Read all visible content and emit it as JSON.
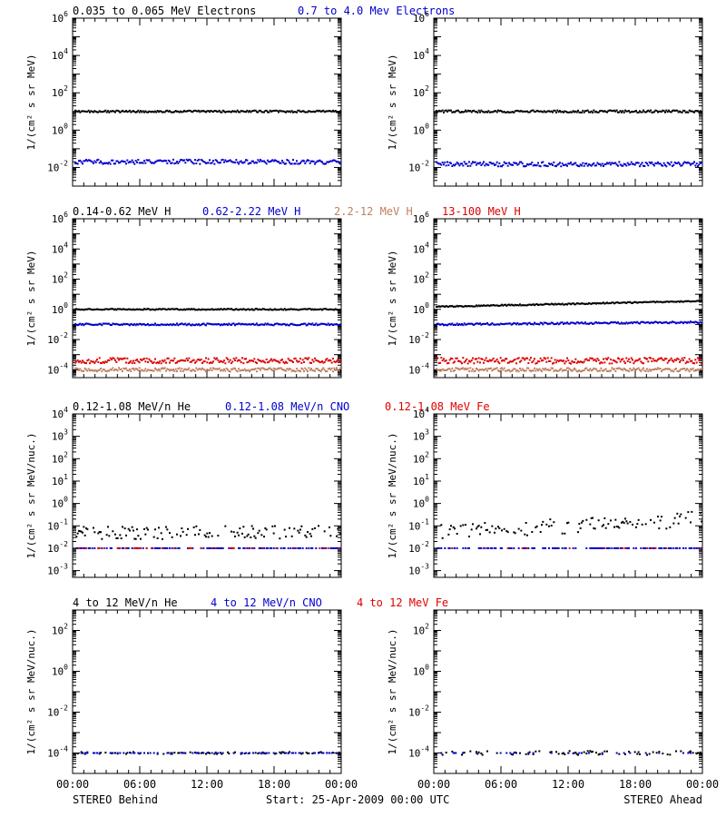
{
  "footer": {
    "left": "STEREO Behind",
    "center": "Start: 25-Apr-2009 00:00 UTC",
    "right": "STEREO Ahead"
  },
  "x_ticks": [
    "00:00",
    "06:00",
    "12:00",
    "18:00",
    "00:00"
  ],
  "colors": {
    "black": "#000000",
    "blue": "#0000cc",
    "tan": "#c08060",
    "red": "#dd0000"
  },
  "chart_data": [
    {
      "row": 0,
      "spacecraft": "STEREO Behind",
      "type": "scatter",
      "log_y": true,
      "ylim": [
        0.001,
        1000000
      ],
      "ylabel": "1/(cm² s sr MeV)",
      "yticks": [
        {
          "value": 0.01,
          "label": "10",
          "exp": "-2"
        },
        {
          "value": 1,
          "label": "10",
          "exp": "0"
        },
        {
          "value": 100,
          "label": "10",
          "exp": "2"
        },
        {
          "value": 10000,
          "label": "10",
          "exp": "4"
        },
        {
          "value": 1000000,
          "label": "10",
          "exp": "6"
        }
      ],
      "legend": [
        {
          "text": "0.035 to 0.065 MeV Electrons",
          "color": "#000000"
        },
        {
          "text": "0.7 to 4.0 Mev Electrons",
          "color": "#0000cc"
        }
      ],
      "series": [
        {
          "name": "0.035 to 0.065 MeV Electrons",
          "color": "#000000",
          "level": 10,
          "spread": 0.05
        },
        {
          "name": "0.7 to 4.0 Mev Electrons",
          "color": "#0000cc",
          "level": 0.02,
          "spread": 0.12
        }
      ]
    },
    {
      "row": 0,
      "spacecraft": "STEREO Ahead",
      "type": "scatter",
      "log_y": true,
      "ylim": [
        0.001,
        1000000
      ],
      "ylabel": "1/(cm² s sr MeV)",
      "yticks": [
        {
          "value": 0.01,
          "label": "10",
          "exp": "-2"
        },
        {
          "value": 1,
          "label": "10",
          "exp": "0"
        },
        {
          "value": 100,
          "label": "10",
          "exp": "2"
        },
        {
          "value": 10000,
          "label": "10",
          "exp": "4"
        },
        {
          "value": 1000000,
          "label": "10",
          "exp": "6"
        }
      ],
      "legend": [],
      "series": [
        {
          "name": "0.035 to 0.065 MeV Electrons",
          "color": "#000000",
          "level": 10,
          "spread": 0.06
        },
        {
          "name": "0.7 to 4.0 Mev Electrons",
          "color": "#0000cc",
          "level": 0.015,
          "spread": 0.12
        }
      ]
    },
    {
      "row": 1,
      "spacecraft": "STEREO Behind",
      "type": "scatter",
      "log_y": true,
      "ylim": [
        3e-05,
        1000000
      ],
      "ylabel": "1/(cm² s sr MeV)",
      "yticks": [
        {
          "value": 0.0001,
          "label": "10",
          "exp": "-4"
        },
        {
          "value": 0.01,
          "label": "10",
          "exp": "-2"
        },
        {
          "value": 1,
          "label": "10",
          "exp": "0"
        },
        {
          "value": 100,
          "label": "10",
          "exp": "2"
        },
        {
          "value": 10000,
          "label": "10",
          "exp": "4"
        },
        {
          "value": 1000000,
          "label": "10",
          "exp": "6"
        }
      ],
      "legend": [
        {
          "text": "0.14-0.62 MeV H",
          "color": "#000000"
        },
        {
          "text": "0.62-2.22 MeV H",
          "color": "#0000cc"
        },
        {
          "text": "2.2-12 MeV H",
          "color": "#c08060"
        },
        {
          "text": "13-100 MeV H",
          "color": "#dd0000"
        }
      ],
      "series": [
        {
          "name": "0.14-0.62 MeV H",
          "color": "#000000",
          "level": 1.0,
          "spread": 0.04
        },
        {
          "name": "0.62-2.22 MeV H",
          "color": "#0000cc",
          "level": 0.1,
          "spread": 0.06
        },
        {
          "name": "2.2-12 MeV H",
          "color": "#c08060",
          "level": 0.0001,
          "spread": 0.12
        },
        {
          "name": "13-100 MeV H",
          "color": "#dd0000",
          "level": 0.0004,
          "spread": 0.18
        }
      ]
    },
    {
      "row": 1,
      "spacecraft": "STEREO Ahead",
      "type": "scatter",
      "log_y": true,
      "ylim": [
        3e-05,
        1000000
      ],
      "ylabel": "1/(cm² s sr MeV)",
      "yticks": [
        {
          "value": 0.0001,
          "label": "10",
          "exp": "-4"
        },
        {
          "value": 0.01,
          "label": "10",
          "exp": "-2"
        },
        {
          "value": 1,
          "label": "10",
          "exp": "0"
        },
        {
          "value": 100,
          "label": "10",
          "exp": "2"
        },
        {
          "value": 10000,
          "label": "10",
          "exp": "4"
        },
        {
          "value": 1000000,
          "label": "10",
          "exp": "6"
        }
      ],
      "legend": [],
      "series": [
        {
          "name": "0.14-0.62 MeV H",
          "color": "#000000",
          "level": 1.5,
          "level_end": 3.5,
          "spread": 0.04
        },
        {
          "name": "0.62-2.22 MeV H",
          "color": "#0000cc",
          "level": 0.1,
          "level_end": 0.14,
          "spread": 0.06
        },
        {
          "name": "2.2-12 MeV H",
          "color": "#c08060",
          "level": 0.0001,
          "spread": 0.12
        },
        {
          "name": "13-100 MeV H",
          "color": "#dd0000",
          "level": 0.0004,
          "spread": 0.2
        }
      ]
    },
    {
      "row": 2,
      "spacecraft": "STEREO Behind",
      "type": "scatter",
      "log_y": true,
      "ylim": [
        0.0005,
        10000
      ],
      "ylabel": "1/(cm² s sr MeV/nuc.)",
      "yticks": [
        {
          "value": 0.001,
          "label": "10",
          "exp": "-3"
        },
        {
          "value": 0.01,
          "label": "10",
          "exp": "-2"
        },
        {
          "value": 0.1,
          "label": "10",
          "exp": "-1"
        },
        {
          "value": 1,
          "label": "10",
          "exp": "0"
        },
        {
          "value": 10,
          "label": "10",
          "exp": "1"
        },
        {
          "value": 100,
          "label": "10",
          "exp": "2"
        },
        {
          "value": 1000,
          "label": "10",
          "exp": "3"
        },
        {
          "value": 10000,
          "label": "10",
          "exp": "4"
        }
      ],
      "legend": [
        {
          "text": "0.12-1.08 MeV/n He",
          "color": "#000000"
        },
        {
          "text": "0.12-1.08 MeV/n CNO",
          "color": "#0000cc"
        },
        {
          "text": "0.12-1.08 MeV Fe",
          "color": "#dd0000"
        }
      ],
      "series": [
        {
          "name": "0.12-1.08 MeV/n He",
          "color": "#000000",
          "level": 0.05,
          "spread": 0.3,
          "sparse": true
        },
        {
          "name": "0.12-1.08 MeV/n CNO",
          "color": "#0000cc",
          "level": 0.01,
          "spread": 0.0,
          "sparse": true
        },
        {
          "name": "0.12-1.08 MeV Fe",
          "color": "#dd0000",
          "level": 0.01,
          "spread": 0.0,
          "sparse": true,
          "density": 0.15
        }
      ]
    },
    {
      "row": 2,
      "spacecraft": "STEREO Ahead",
      "type": "scatter",
      "log_y": true,
      "ylim": [
        0.0005,
        10000
      ],
      "ylabel": "1/(cm² s sr MeV/nuc.)",
      "yticks": [
        {
          "value": 0.001,
          "label": "10",
          "exp": "-3"
        },
        {
          "value": 0.01,
          "label": "10",
          "exp": "-2"
        },
        {
          "value": 0.1,
          "label": "10",
          "exp": "-1"
        },
        {
          "value": 1,
          "label": "10",
          "exp": "0"
        },
        {
          "value": 10,
          "label": "10",
          "exp": "1"
        },
        {
          "value": 100,
          "label": "10",
          "exp": "2"
        },
        {
          "value": 1000,
          "label": "10",
          "exp": "3"
        },
        {
          "value": 10000,
          "label": "10",
          "exp": "4"
        }
      ],
      "legend": [],
      "series": [
        {
          "name": "0.12-1.08 MeV/n He",
          "color": "#000000",
          "level": 0.05,
          "level_end": 0.2,
          "spread": 0.35,
          "sparse": true
        },
        {
          "name": "0.12-1.08 MeV/n CNO",
          "color": "#0000cc",
          "level": 0.01,
          "spread": 0.0,
          "sparse": true
        },
        {
          "name": "0.12-1.08 MeV Fe",
          "color": "#dd0000",
          "level": 0.01,
          "spread": 0.0,
          "sparse": true,
          "density": 0.1
        }
      ]
    },
    {
      "row": 3,
      "spacecraft": "STEREO Behind",
      "type": "scatter",
      "log_y": true,
      "ylim": [
        1e-05,
        1000
      ],
      "ylabel": "1/(cm² s sr MeV/nuc.)",
      "yticks": [
        {
          "value": 0.0001,
          "label": "10",
          "exp": "-4"
        },
        {
          "value": 0.01,
          "label": "10",
          "exp": "-2"
        },
        {
          "value": 1,
          "label": "10",
          "exp": "0"
        },
        {
          "value": 100,
          "label": "10",
          "exp": "2"
        }
      ],
      "legend": [
        {
          "text": "4 to 12 MeV/n He",
          "color": "#000000"
        },
        {
          "text": "4 to 12 MeV/n CNO",
          "color": "#0000cc"
        },
        {
          "text": "4 to 12 MeV Fe",
          "color": "#dd0000"
        }
      ],
      "series": [
        {
          "name": "4 to 12 MeV/n He",
          "color": "#000000",
          "level": 0.0001,
          "spread": 0.05,
          "sparse": true,
          "density": 0.35
        },
        {
          "name": "4 to 12 MeV/n CNO",
          "color": "#0000cc",
          "level": 0.0001,
          "spread": 0.0,
          "sparse": true,
          "density": 0.3
        }
      ]
    },
    {
      "row": 3,
      "spacecraft": "STEREO Ahead",
      "type": "scatter",
      "log_y": true,
      "ylim": [
        1e-05,
        1000
      ],
      "ylabel": "1/(cm² s sr MeV/nuc.)",
      "yticks": [
        {
          "value": 0.0001,
          "label": "10",
          "exp": "-4"
        },
        {
          "value": 0.01,
          "label": "10",
          "exp": "-2"
        },
        {
          "value": 1,
          "label": "10",
          "exp": "0"
        },
        {
          "value": 100,
          "label": "10",
          "exp": "2"
        }
      ],
      "legend": [],
      "series": [
        {
          "name": "4 to 12 MeV/n He",
          "color": "#000000",
          "level": 0.0001,
          "spread": 0.1,
          "sparse": true,
          "density": 0.3
        },
        {
          "name": "4 to 12 MeV/n CNO",
          "color": "#0000cc",
          "level": 0.0001,
          "spread": 0.0,
          "sparse": true,
          "density": 0.15
        }
      ]
    }
  ]
}
